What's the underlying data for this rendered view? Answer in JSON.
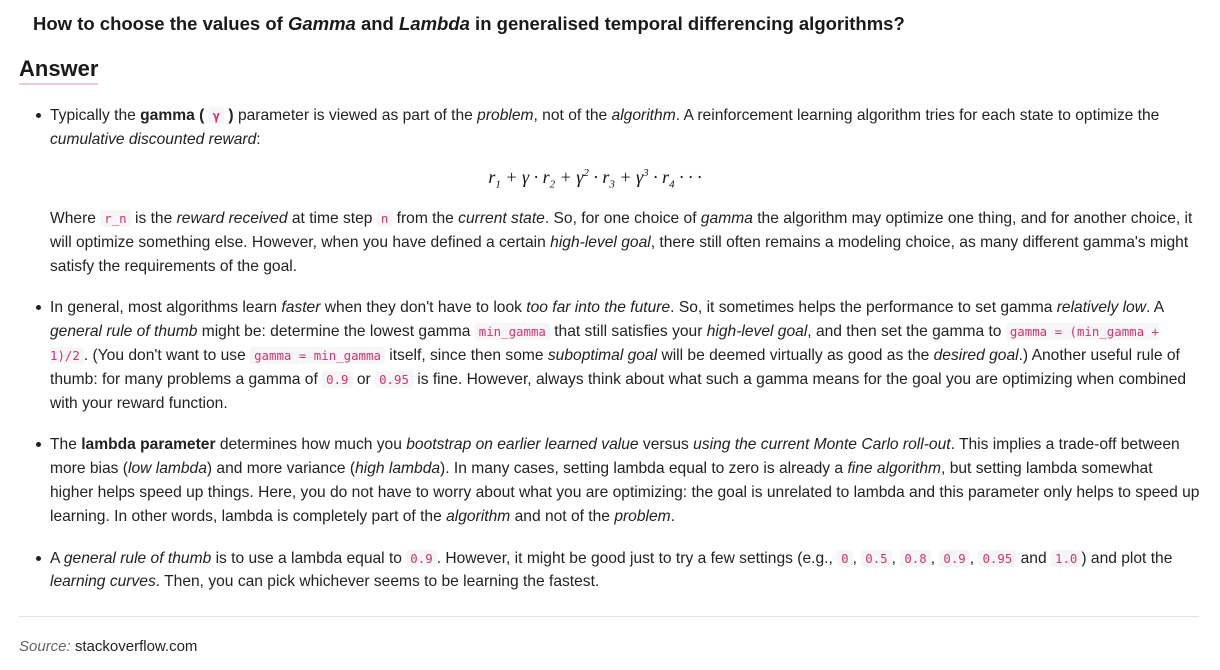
{
  "question": {
    "p1": "How to choose the values of ",
    "gamma": "Gamma",
    "p2": " and ",
    "lambda": "Lambda",
    "p3": " in generalised temporal differencing algorithms?"
  },
  "answer_heading": "Answer",
  "b1": {
    "t1": "Typically the ",
    "gamma_b": "gamma ( ",
    "gamma_sym": "γ",
    "gamma_b2": " )",
    "t2": " parameter is viewed as part of the ",
    "problem": "problem",
    "t3": ", not of the ",
    "algorithm": "algorithm",
    "t4": ". A reinforcement learning algorithm tries for each state to optimize the ",
    "cdr": "cumulative discounted reward",
    "t5": ":",
    "formula": {
      "r": "r",
      "i1": "1",
      "i2": "2",
      "i3": "3",
      "i4": "4",
      "plus": " + ",
      "g": "γ",
      "dot": " · ",
      "e2": "2",
      "e3": "3",
      "dots": " · · ·"
    },
    "w1": "Where ",
    "rn": "r_n",
    "w2": " is the ",
    "reward": "reward received",
    "w3": " at time step ",
    "n": "n",
    "w4": " from the ",
    "cur": "current state",
    "w5": ". So, for one choice of ",
    "gamma_i": "gamma",
    "w6": " the algorithm may optimize one thing, and for another choice, it will optimize something else. However, when you have defined a certain ",
    "hlg": "high-level goal",
    "w7": ", there still often remains a modeling choice, as many different gamma's might satisfy the requirements of the goal."
  },
  "b2": {
    "t1": "In general, most algorithms learn ",
    "faster": "faster",
    "t2": " when they don't have to look ",
    "toofar": "too far into the future",
    "t3": ". So, it sometimes helps the performance to set gamma ",
    "rel": "relatively low",
    "t4": ". A ",
    "gr": "general rule of thumb",
    "t5": " might be: determine the lowest gamma ",
    "c1": "min_gamma",
    "t6": " that still satisfies your ",
    "hlg": "high-level goal",
    "t7": ", and then set the gamma to ",
    "c2": "gamma = (min_gamma + 1)/2",
    "t8": ". (You don't want to use ",
    "c3": "gamma = min_gamma",
    "t9": " itself, since then some ",
    "sub": "suboptimal goal",
    "t10": " will be deemed virtually as good as the ",
    "des": "desired goal",
    "t11": ".) Another useful rule of thumb: for many problems a gamma of ",
    "c4": "0.9",
    "t12": " or ",
    "c5": "0.95",
    "t13": " is fine. However, always think about what such a gamma means for the goal you are optimizing when combined with your reward function."
  },
  "b3": {
    "t1": "The ",
    "lp": "lambda parameter",
    "t2": " determines how much you ",
    "boot": "bootstrap on earlier learned value",
    "t3": " versus ",
    "using": "using the current Monte Carlo roll-out",
    "t4": ". This implies a trade-off between more bias (",
    "low": "low lambda",
    "t5": ") and more variance (",
    "high": "high lambda",
    "t6": "). In many cases, setting lambda equal to zero is already a ",
    "fine": "fine algorithm",
    "t7": ", but setting lambda somewhat higher helps speed up things. Here, you do not have to worry about what you are optimizing: the goal is unrelated to lambda and this parameter only helps to speed up learning. In other words, lambda is completely part of the ",
    "alg": "algorithm",
    "t8": " and not of the ",
    "prob": "problem",
    "t9": "."
  },
  "b4": {
    "t1": "A ",
    "gr": "general rule of thumb",
    "t2": " is to use a lambda equal to ",
    "c1": "0.9",
    "t3": ". However, it might be good just to try a few settings (e.g., ",
    "c2": "0",
    "sep": ", ",
    "c3": "0.5",
    "c4": "0.8",
    "c5": "0.9",
    "c6": "0.95",
    "and": " and ",
    "c7": "1.0",
    "t4": ") and plot the ",
    "lc": "learning curves",
    "t5": ". Then, you can pick whichever seems to be learning the fastest."
  },
  "source": {
    "label": "Source:",
    "site": "stackoverflow.com"
  },
  "colors": {
    "code_text": "#d6336c",
    "code_bg": "#f6f6f8",
    "heading_underline": "#f3c6d3"
  }
}
